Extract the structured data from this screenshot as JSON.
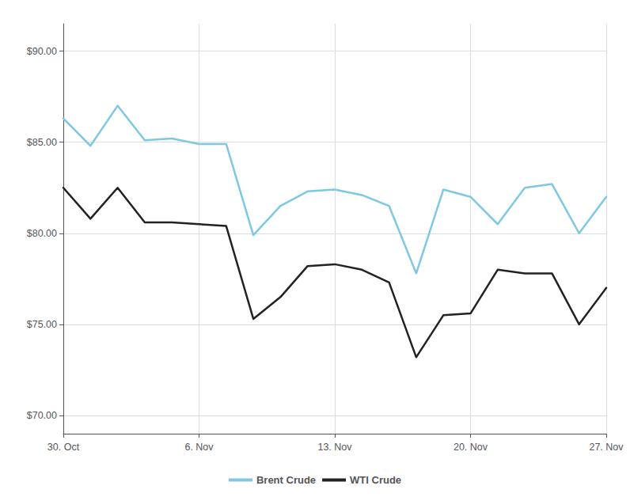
{
  "chart_data": {
    "type": "line",
    "categories": [
      "30. Oct",
      null,
      null,
      null,
      null,
      "6. Nov",
      null,
      null,
      null,
      null,
      "13. Nov",
      null,
      null,
      null,
      null,
      "20. Nov",
      null,
      null,
      null,
      null,
      "27. Nov"
    ],
    "series": [
      {
        "name": "Brent Crude",
        "color": "#7EC8E3",
        "values": [
          86.3,
          84.8,
          87.0,
          85.1,
          85.2,
          84.9,
          84.9,
          79.9,
          81.5,
          82.3,
          82.4,
          82.1,
          81.5,
          77.8,
          82.4,
          82.0,
          80.5,
          82.5,
          82.7,
          80.0,
          82.0
        ]
      },
      {
        "name": "WTI Crude",
        "color": "#222222",
        "values": [
          82.5,
          80.8,
          82.5,
          80.6,
          80.6,
          80.5,
          80.4,
          75.3,
          76.5,
          78.2,
          78.3,
          78.0,
          77.3,
          73.2,
          75.5,
          75.6,
          78.0,
          77.8,
          77.8,
          75.0,
          77.0
        ]
      }
    ],
    "ylim": [
      69.0,
      91.5
    ],
    "yticks": [
      {
        "value": 70.0,
        "label": "$70.00"
      },
      {
        "value": 75.0,
        "label": "$75.00"
      },
      {
        "value": 80.0,
        "label": "$80.00"
      },
      {
        "value": 85.0,
        "label": "$85.00"
      },
      {
        "value": 90.0,
        "label": "$90.00"
      }
    ],
    "grid": true,
    "legend": "bottom"
  }
}
